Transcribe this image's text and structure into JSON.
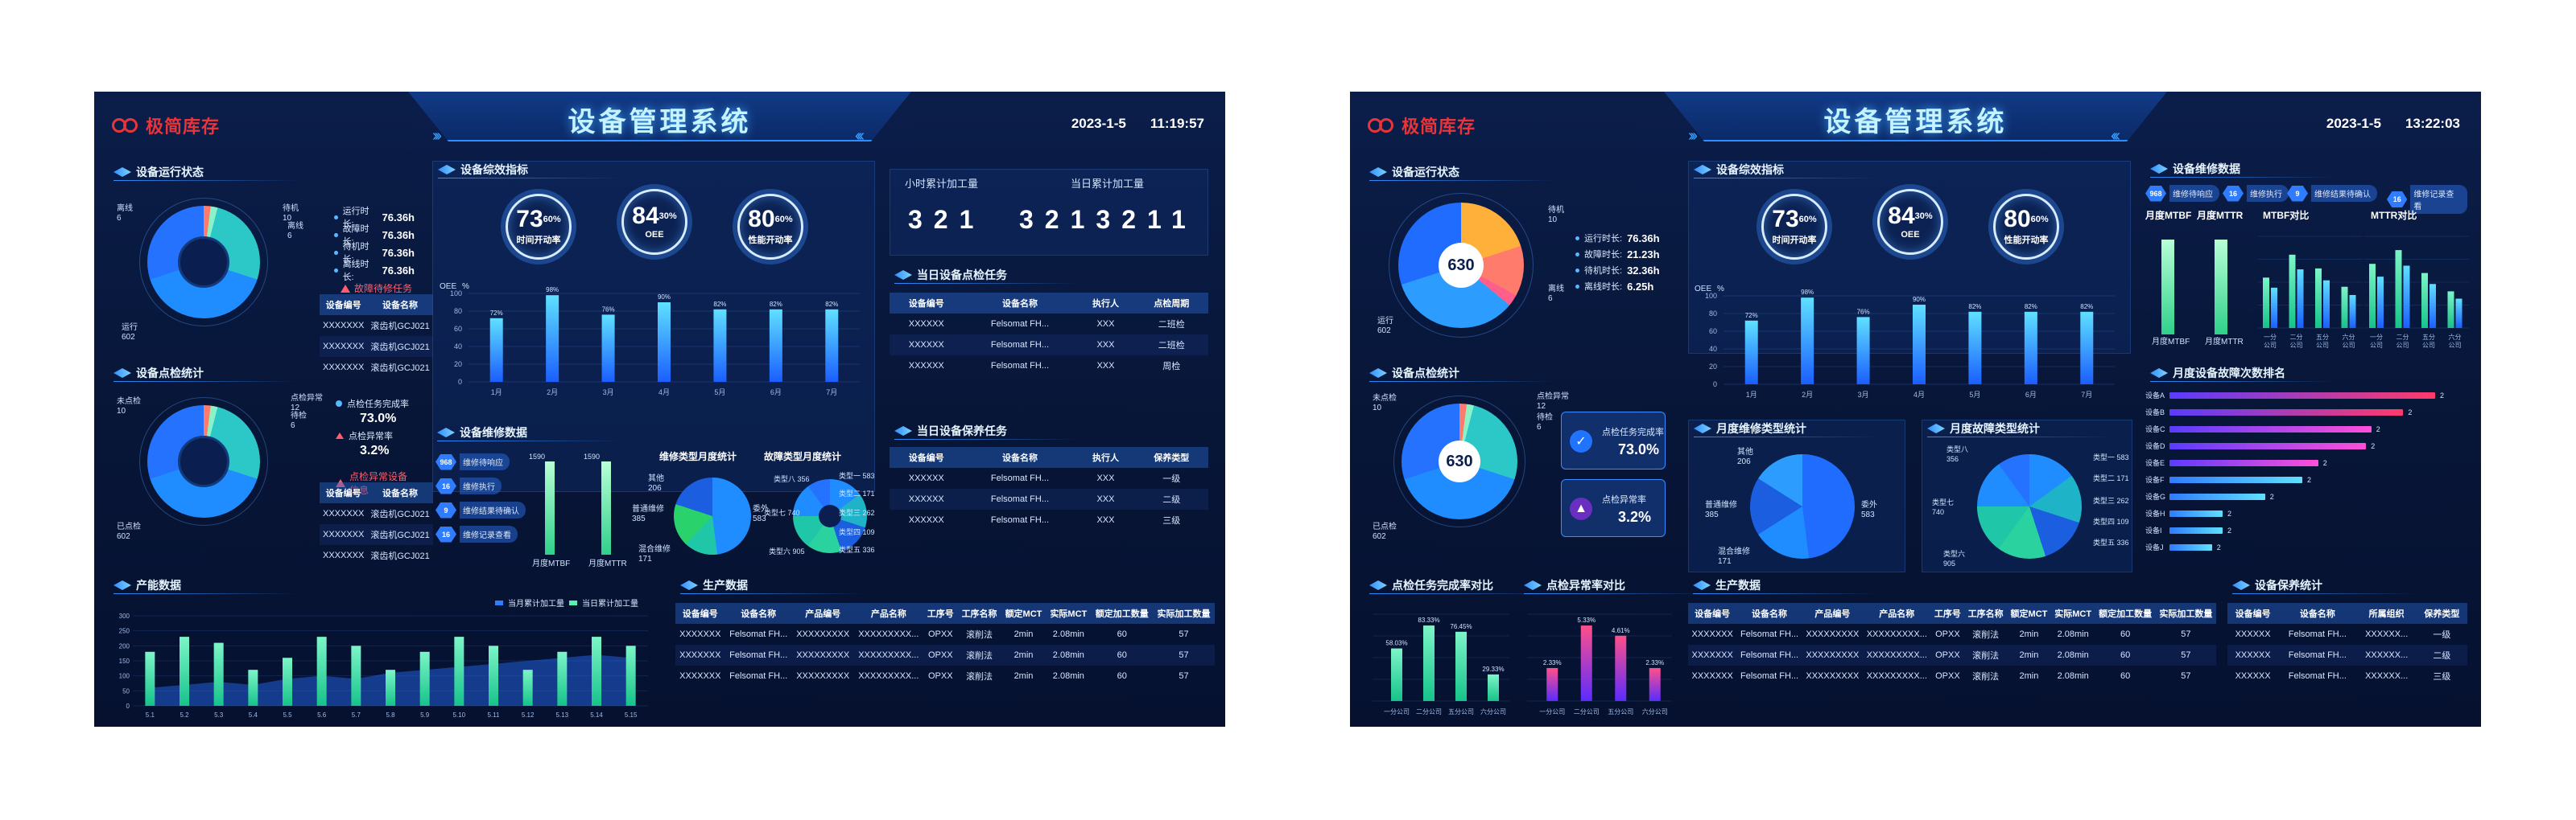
{
  "common": {
    "logo_text": "极简库存",
    "title": "设备管理系统",
    "date": "2023-1-5",
    "equip_status": {
      "title": "设备运行状态",
      "labels": {
        "standby": "待机",
        "standby_val": "10",
        "offline": "离线",
        "offline_val": "6",
        "running": "运行",
        "running_val": "602",
        "offline_b": "离线",
        "offline_b_val": "6"
      },
      "legend": [
        {
          "label": "运行时长:",
          "value": "76.36h"
        },
        {
          "label": "故障时长:",
          "value": "76.36h"
        },
        {
          "label": "待机时长:",
          "value": "76.36h"
        },
        {
          "label": "离线时长:",
          "value": "76.36h"
        }
      ],
      "legend_b": [
        {
          "label": "运行时长:",
          "value": "76.36h"
        },
        {
          "label": "故障时长:",
          "value": "21.23h"
        },
        {
          "label": "待机时长:",
          "value": "32.36h"
        },
        {
          "label": "离线时长:",
          "value": "6.25h"
        }
      ],
      "donut_center_b": "630",
      "fault_alert": "故障待修任务",
      "fault_table": {
        "headers": [
          "设备编号",
          "设备名称"
        ],
        "rows": [
          [
            "XXXXXXX",
            "滚齿机GCJ021"
          ],
          [
            "XXXXXXX",
            "滚齿机GCJ021"
          ],
          [
            "XXXXXXX",
            "滚齿机GCJ021"
          ]
        ]
      }
    },
    "inspect": {
      "title": "设备点检统计",
      "labels": {
        "not_checked": "未点检",
        "not_checked_val": "10",
        "done": "已点检",
        "done_val": "602"
      },
      "legend_a": [
        {
          "label": "点检任务完成率",
          "value": "73.0%"
        },
        {
          "label": "点检异常率",
          "value": "3.2%"
        }
      ],
      "side_labels_a": {
        "abnormal": "点检异常",
        "abnormal_val": "12",
        "standby": "待检",
        "standby_val": "6"
      },
      "donut_center_b": "630",
      "abnormal_alert": "点检异常设备信息",
      "table": {
        "headers": [
          "设备编号",
          "设备名称"
        ],
        "rows": [
          [
            "XXXXXXX",
            "滚齿机GCJ021"
          ],
          [
            "XXXXXXX",
            "滚齿机GCJ021"
          ],
          [
            "XXXXXXX",
            "滚齿机GCJ021"
          ]
        ]
      }
    },
    "efficiency": {
      "title": "设备综效指标",
      "gauges": [
        {
          "value": "73",
          "unit": "60%",
          "label": "时间开动率"
        },
        {
          "value": "84",
          "unit": "30%",
          "label": "OEE"
        },
        {
          "value": "80",
          "unit": "60%",
          "label": "性能开动率"
        }
      ]
    },
    "production": {
      "hour_label": "小时累计加工量",
      "hour_value": "321",
      "day_label": "当日累计加工量",
      "day_value": "3213211"
    },
    "inspect_task": {
      "title": "当日设备点检任务",
      "headers": [
        "设备编号",
        "设备名称",
        "执行人",
        "点检周期"
      ],
      "rows": [
        [
          "XXXXXX",
          "Felsomat FH...",
          "XXX",
          "二班检"
        ],
        [
          "XXXXXX",
          "Felsomat FH...",
          "XXX",
          "二班检"
        ],
        [
          "XXXXXX",
          "Felsomat FH...",
          "XXX",
          "周检"
        ]
      ]
    },
    "maint_task": {
      "title": "当日设备保养任务",
      "headers": [
        "设备编号",
        "设备名称",
        "执行人",
        "保养类型"
      ],
      "rows": [
        [
          "XXXXXX",
          "Felsomat FH...",
          "XXX",
          "一级"
        ],
        [
          "XXXXXX",
          "Felsomat FH...",
          "XXX",
          "二级"
        ],
        [
          "XXXXXX",
          "Felsomat FH...",
          "XXX",
          "三级"
        ]
      ]
    },
    "repair": {
      "title": "设备维修数据",
      "badges": [
        {
          "num": "968",
          "label": "维修待响应"
        },
        {
          "num": "16",
          "label": "维修执行"
        },
        {
          "num": "9",
          "label": "维修结果待确认"
        },
        {
          "num": "16",
          "label": "维修记录查看"
        }
      ],
      "mtbf_label": "月度MTBF",
      "mttr_label": "月度MTTR",
      "bar_a_top": "1590",
      "bar_b_top": "1590",
      "type_title": "维修类型月度统计",
      "fault_title": "故障类型月度统计",
      "type_slices": [
        {
          "name": "其他",
          "value": "206"
        },
        {
          "name": "普通维修",
          "value": "385"
        },
        {
          "name": "委外",
          "value": "583"
        },
        {
          "name": "混合维修",
          "value": "171"
        }
      ],
      "fault_slices": [
        {
          "name": "类型八",
          "value": "356"
        },
        {
          "name": "类型七",
          "value": "740"
        },
        {
          "name": "类型六",
          "value": "905"
        },
        {
          "name": "类型一",
          "value": "583"
        },
        {
          "name": "类型二",
          "value": "171"
        },
        {
          "name": "类型三",
          "value": "262"
        },
        {
          "name": "类型四",
          "value": "109"
        },
        {
          "name": "类型五",
          "value": "336"
        }
      ]
    },
    "output": {
      "title": "产能数据",
      "legend": [
        "当月累计加工量",
        "当日累计加工量"
      ]
    },
    "prod_data": {
      "title": "生产数据",
      "headers": [
        "设备编号",
        "设备名称",
        "产品编号",
        "产品名称",
        "工序号",
        "工序名称",
        "额定MCT",
        "实际MCT",
        "额定加工数量",
        "实际加工数量"
      ],
      "rows": [
        [
          "XXXXXXX",
          "Felsomat FH...",
          "XXXXXXXXX",
          "XXXXXXXXX...",
          "OPXX",
          "滚削法",
          "2min",
          "2.08min",
          "60",
          "57"
        ],
        [
          "XXXXXXX",
          "Felsomat FH...",
          "XXXXXXXXX",
          "XXXXXXXXX...",
          "OPXX",
          "滚削法",
          "2min",
          "2.08min",
          "60",
          "57"
        ],
        [
          "XXXXXXX",
          "Felsomat FH...",
          "XXXXXXXXX",
          "XXXXXXXXX...",
          "OPXX",
          "滚削法",
          "2min",
          "2.08min",
          "60",
          "57"
        ]
      ]
    }
  },
  "dash_a": {
    "time": "11:19:57"
  },
  "dash_b": {
    "time": "13:22:03",
    "repair_badges": [
      {
        "num": "968",
        "label": "维修待响应"
      },
      {
        "num": "16",
        "label": "维修执行"
      },
      {
        "num": "9",
        "label": "维修结果待确认"
      },
      {
        "num": "16",
        "label": "维修记录查看"
      }
    ],
    "mtbf_title": "MTBF对比",
    "mttr_title": "MTTR对比",
    "mtbf_cats": [
      "一分公司",
      "二分公司",
      "五分公司",
      "六分公司"
    ],
    "rank_title": "月度设备故障次数排名",
    "rank_labels": [
      "设备A",
      "设备B",
      "设备C",
      "设备D",
      "设备E",
      "设备F",
      "设备G",
      "设备H",
      "设备I",
      "设备J"
    ],
    "rank_values": [
      2,
      2,
      2,
      2,
      2,
      2,
      2,
      2,
      2,
      2
    ],
    "rank_frac": [
      1.0,
      0.88,
      0.76,
      0.74,
      0.56,
      0.5,
      0.36,
      0.2,
      0.2,
      0.16
    ],
    "repair_type_title": "月度维修类型统计",
    "fault_type_title": "月度故障类型统计",
    "inspect_rate_title": "点检任务完成率对比",
    "inspect_abn_title": "点检异常率对比",
    "company_cats": [
      "一分公司",
      "二分公司",
      "五分公司",
      "六分公司"
    ],
    "inspect_rate_vals": [
      "58.03%",
      "83.33%",
      "76.45%",
      "29.33%"
    ],
    "inspect_abn_vals": [
      "2.33%",
      "5.33%",
      "4.61%",
      "2.33%"
    ],
    "maint_stat_title": "设备保养统计",
    "maint_headers": [
      "设备编号",
      "设备名称",
      "所属组织",
      "保养类型"
    ],
    "maint_rows": [
      [
        "XXXXXX",
        "Felsomat FH...",
        "XXXXXX...",
        "一级"
      ],
      [
        "XXXXXX",
        "Felsomat FH...",
        "XXXXXX...",
        "二级"
      ],
      [
        "XXXXXX",
        "Felsomat FH...",
        "XXXXXX...",
        "三级"
      ]
    ]
  },
  "chart_data": [
    {
      "type": "bar",
      "categories": [
        "1月",
        "2月",
        "3月",
        "4月",
        "5月",
        "6月",
        "7月"
      ],
      "values": [
        72,
        98,
        76,
        90,
        82,
        82,
        82
      ],
      "ylabel": "OEE",
      "yunit": "%",
      "ylim": [
        0,
        100
      ],
      "yticks": [
        0,
        20,
        40,
        60,
        80,
        100
      ],
      "data_labels": [
        "72%",
        "98%",
        "76%",
        "90%",
        "82%",
        "82%",
        "82%"
      ]
    },
    {
      "type": "bar",
      "categories": [
        "5.1",
        "5.2",
        "5.3",
        "5.4",
        "5.5",
        "5.6",
        "5.7",
        "5.8",
        "5.9",
        "5.10",
        "5.11",
        "5.12",
        "5.13",
        "5.14",
        "5.15"
      ],
      "series": [
        {
          "name": "当月累计加工量",
          "values": [
            180,
            230,
            210,
            120,
            160,
            230,
            200,
            120,
            180,
            230,
            200,
            120,
            180,
            230,
            200
          ]
        },
        {
          "name": "当日累计加工量",
          "values": [
            60,
            70,
            80,
            70,
            90,
            100,
            90,
            110,
            120,
            130,
            140,
            150,
            160,
            170,
            160
          ]
        }
      ],
      "ylim": [
        0,
        300
      ],
      "yticks": [
        0,
        50,
        100,
        150,
        200,
        250,
        300
      ]
    }
  ]
}
